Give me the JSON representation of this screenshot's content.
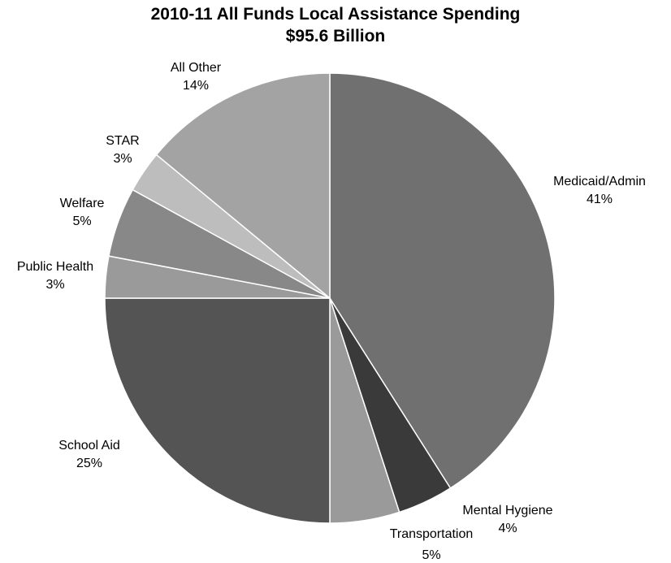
{
  "chart_data": {
    "type": "pie",
    "title": "2010-11 All Funds Local Assistance Spending",
    "subtitle": "$95.6 Billion",
    "slices": [
      {
        "label": "Medicaid/Admin",
        "value": 41,
        "display": "41%",
        "color": "#707070"
      },
      {
        "label": "Mental Hygiene",
        "value": 4,
        "display": "4%",
        "color": "#3a3a3a"
      },
      {
        "label": "Transportation",
        "value": 5,
        "display": "5%",
        "color": "#9a9a9a"
      },
      {
        "label": "School Aid",
        "value": 25,
        "display": "25%",
        "color": "#545454"
      },
      {
        "label": "Public Health",
        "value": 3,
        "display": "3%",
        "color": "#9a9a9a"
      },
      {
        "label": "Welfare",
        "value": 5,
        "display": "5%",
        "color": "#888888"
      },
      {
        "label": "STAR",
        "value": 3,
        "display": "3%",
        "color": "#bdbdbd"
      },
      {
        "label": "All Other",
        "value": 14,
        "display": "14%",
        "color": "#a3a3a3"
      }
    ],
    "start_angle": "12 o'clock",
    "direction": "clockwise",
    "legend": "none"
  }
}
